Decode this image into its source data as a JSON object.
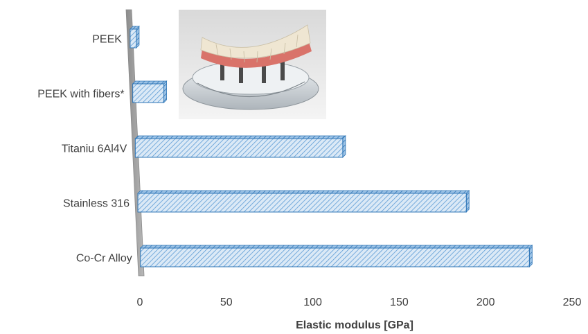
{
  "chart_data": {
    "type": "bar",
    "orientation": "horizontal",
    "style": "3d-hatched",
    "categories": [
      "PEEK",
      "PEEK with fibers*",
      "Titaniu 6Al4V",
      "Stainless 316",
      "Co-Cr Alloy"
    ],
    "values": [
      3.6,
      18,
      120,
      190,
      225
    ],
    "xlabel": "Elastic modulus [GPa]",
    "ylabel": "",
    "xlim": [
      0,
      250
    ],
    "xticks": [
      0,
      50,
      100,
      150,
      200,
      250
    ],
    "grid": false,
    "legend": "none",
    "colors": {
      "bar_fill": "#dbe9f6",
      "bar_hatch": "#5b9bd5",
      "bar_edge": "#2e75b6",
      "wall": "#a6a6a6",
      "text": "#404040"
    },
    "inset_image": "dental-implant-bridge-photo"
  }
}
